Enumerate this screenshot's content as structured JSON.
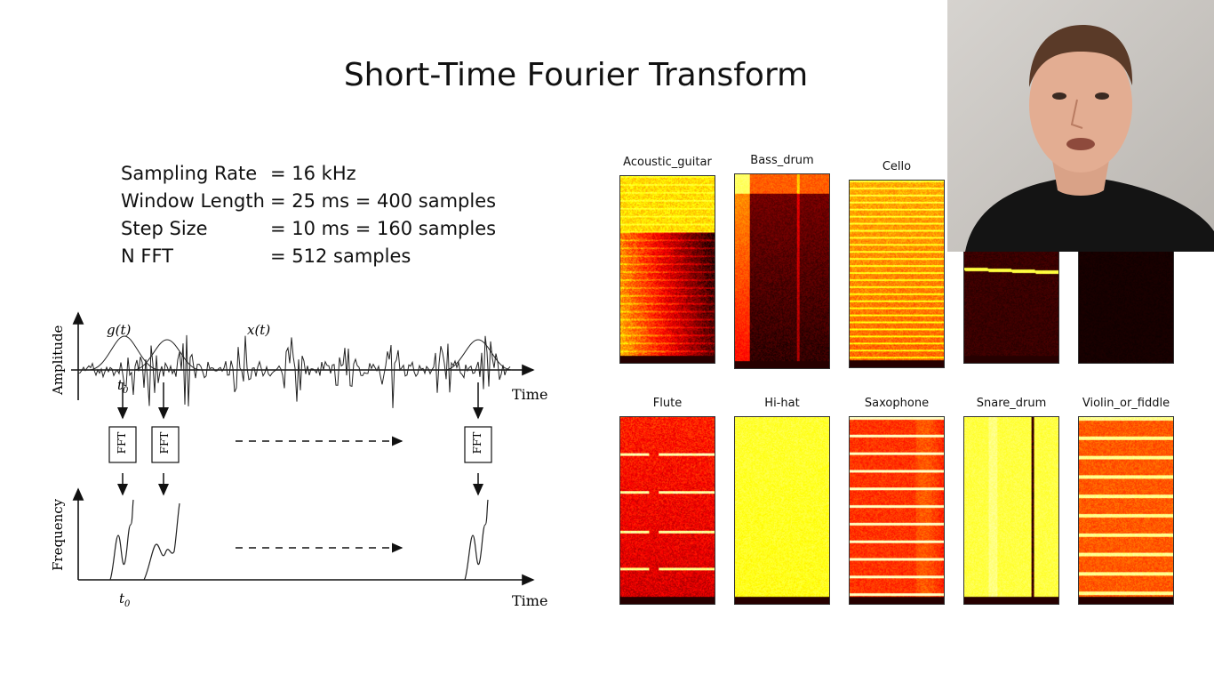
{
  "title": "Short-Time Fourier Transform",
  "params": [
    {
      "label": "Sampling Rate",
      "value": "= 16 kHz"
    },
    {
      "label": "Window Length",
      "value": "= 25 ms = 400 samples"
    },
    {
      "label": "Step Size",
      "value": "= 10 ms = 160 samples"
    },
    {
      "label": "N FFT",
      "value": "= 512 samples"
    }
  ],
  "diagram": {
    "amplitude_label": "Amplitude",
    "frequency_label": "Frequency",
    "time_label_top": "Time",
    "time_label_bottom": "Time",
    "window_label": "g(t)",
    "signal_label": "x(t)",
    "t0_top": "t",
    "t0_top_sub": "0",
    "t0_bottom": "t",
    "t0_bottom_sub": "0",
    "fft_label": "FFT"
  },
  "spectrograms": [
    {
      "label": "Acoustic_guitar",
      "style": "guitar"
    },
    {
      "label": "Bass_drum",
      "style": "bassdrum"
    },
    {
      "label": "Cello",
      "style": "cello"
    },
    {
      "label": "",
      "style": "clarinet"
    },
    {
      "label": "",
      "style": "dark"
    },
    {
      "label": "Flute",
      "style": "flute"
    },
    {
      "label": "Hi-hat",
      "style": "hihat"
    },
    {
      "label": "Saxophone",
      "style": "sax"
    },
    {
      "label": "Snare_drum",
      "style": "snare"
    },
    {
      "label": "Violin_or_fiddle",
      "style": "violin"
    }
  ]
}
